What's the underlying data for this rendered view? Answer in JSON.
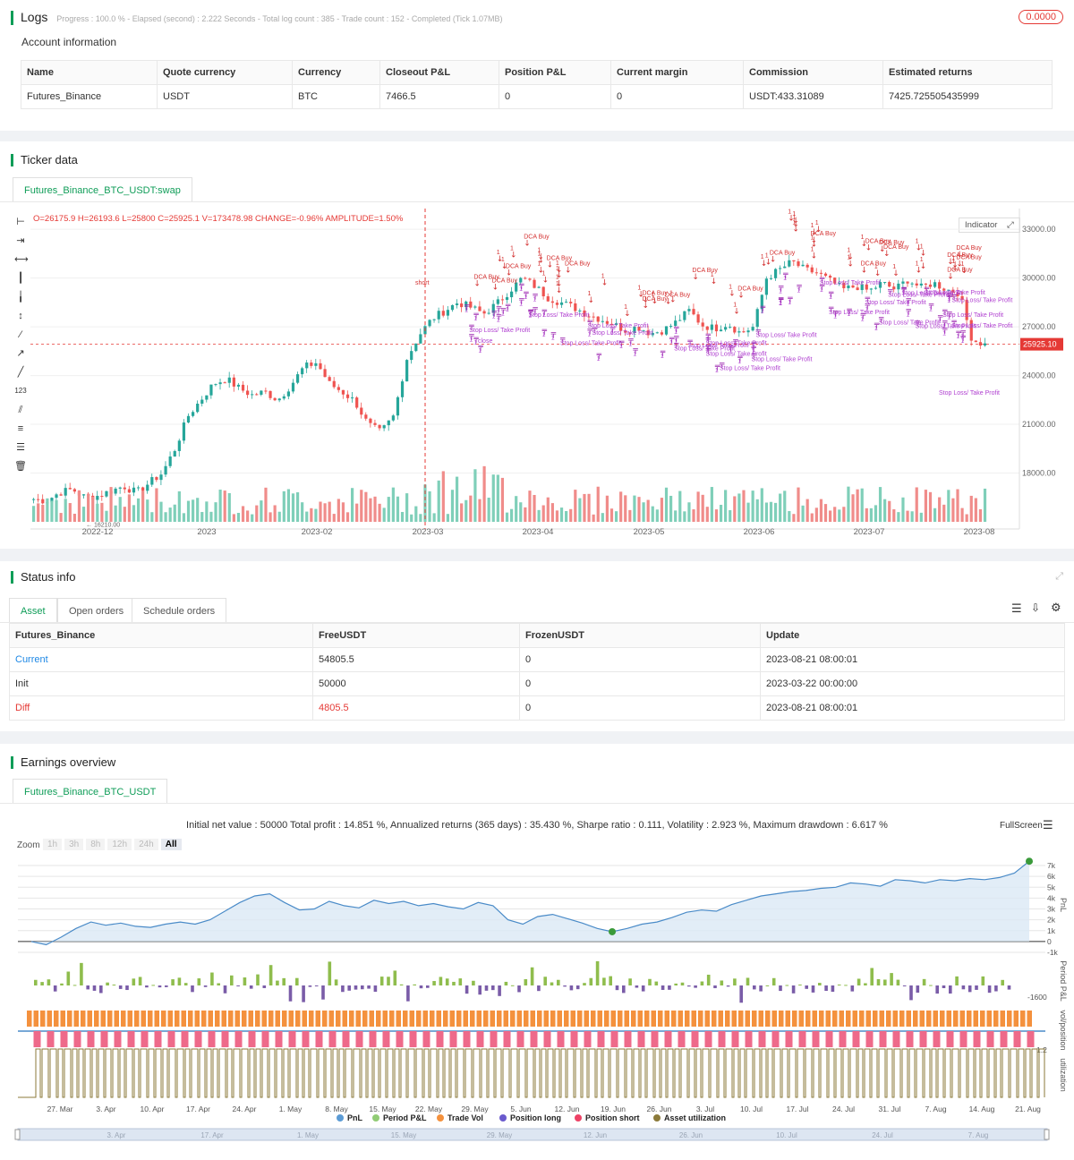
{
  "logs": {
    "title": "Logs",
    "progress": "Progress : 100.0 % - Elapsed (second) : 2.222  Seconds - Total log count : 385 - Trade count : 152 - Completed (Tick 1.07MB)",
    "badge": "0.0000"
  },
  "account": {
    "title": "Account information",
    "headers": [
      "Name",
      "Quote currency",
      "Currency",
      "Closeout P&L",
      "Position P&L",
      "Current margin",
      "Commission",
      "Estimated returns"
    ],
    "row": [
      "Futures_Binance",
      "USDT",
      "BTC",
      "7466.5",
      "0",
      "0",
      "USDT:433.31089",
      "7425.725505435999"
    ]
  },
  "ticker": {
    "title": "Ticker data",
    "tab": "Futures_Binance_BTC_USDT:swap",
    "ohlc": {
      "o": "O=26175.9",
      "h": "H=26193.6",
      "l": "L=25800",
      "c": "C=25925.1",
      "v": "V=173478.98",
      "change": "CHANGE=-0.96%",
      "amplitude": "AMPLITUDE=1.50%"
    },
    "indicator_btn": "Indicator",
    "price_tag": "25925.10",
    "low_label": "16210.00",
    "y_ticks": [
      "33000.00",
      "30000.00",
      "27000.00",
      "24000.00",
      "21000.00",
      "18000.00"
    ],
    "x_ticks": [
      "2022-12",
      "2023",
      "2023-02",
      "2023-03",
      "2023-04",
      "2023-05",
      "2023-06",
      "2023-07",
      "2023-08"
    ],
    "annotations": [
      "DCA Buy",
      "short",
      "close",
      "Stop Loss/ Take Profit",
      "1"
    ]
  },
  "status": {
    "title": "Status info",
    "tabs": [
      "Asset",
      "Open orders",
      "Schedule orders"
    ],
    "headers": [
      "Futures_Binance",
      "FreeUSDT",
      "FrozenUSDT",
      "Update"
    ],
    "rows": [
      [
        "Current",
        "54805.5",
        "0",
        "2023-08-21 08:00:01"
      ],
      [
        "Init",
        "50000",
        "0",
        "2023-03-22 00:00:00"
      ],
      [
        "Diff",
        "4805.5",
        "0",
        "2023-08-21 08:00:01"
      ]
    ]
  },
  "earnings": {
    "title": "Earnings overview",
    "tab": "Futures_Binance_BTC_USDT",
    "summary": "Initial net value : 50000  Total profit : 14.851 %, Annualized returns (365 days) : 35.430 %, Sharpe ratio : 0.111, Volatility : 2.923 %, Maximum drawdown : 6.617 %",
    "fullscreen": "FullScreen",
    "zoom_label": "Zoom",
    "zoom_options": [
      "1h",
      "3h",
      "8h",
      "12h",
      "24h",
      "All"
    ],
    "pnl_ticks": [
      "7k",
      "6k",
      "5k",
      "4k",
      "3k",
      "2k",
      "1k",
      "0",
      "-1k"
    ],
    "period_tick": "-1600",
    "vol_tick": "1.2",
    "right_labels": [
      "PnL",
      "Period P&L",
      "vol/position",
      "utilization"
    ],
    "x_ticks": [
      "27. Mar",
      "3. Apr",
      "10. Apr",
      "17. Apr",
      "24. Apr",
      "1. May",
      "8. May",
      "15. May",
      "22. May",
      "29. May",
      "5. Jun",
      "12. Jun",
      "19. Jun",
      "26. Jun",
      "3. Jul",
      "10. Jul",
      "17. Jul",
      "24. Jul",
      "31. Jul",
      "7. Aug",
      "14. Aug",
      "21. Aug"
    ],
    "nav_ticks": [
      "3. Apr",
      "17. Apr",
      "1. May",
      "15. May",
      "29. May",
      "12. Jun",
      "26. Jun",
      "10. Jul",
      "24. Jul",
      "7. Aug"
    ],
    "legend": [
      {
        "label": "PnL",
        "color": "#5b9bd5"
      },
      {
        "label": "Period P&L",
        "color": "#91cc75"
      },
      {
        "label": "Trade Vol",
        "color": "#f4913d"
      },
      {
        "label": "Position long",
        "color": "#6a5acd"
      },
      {
        "label": "Position short",
        "color": "#ee4266"
      },
      {
        "label": "Asset utilization",
        "color": "#8b7a3a"
      }
    ]
  },
  "chart_data": [
    {
      "type": "candlestick",
      "title": "",
      "x_range": [
        "2022-11",
        "2023-08"
      ],
      "ylim": [
        15000,
        34000
      ],
      "close_path": [
        16400,
        16300,
        16800,
        17000,
        16500,
        16600,
        16900,
        17200,
        16800,
        17400,
        18000,
        19500,
        21500,
        22500,
        23500,
        23800,
        23200,
        22800,
        23000,
        22500,
        23400,
        24500,
        24800,
        23500,
        23000,
        22400,
        21000,
        20500,
        21500,
        25000,
        26500,
        27500,
        28000,
        28500,
        28200,
        27800,
        28400,
        29200,
        30000,
        29500,
        28800,
        28500,
        28200,
        27800,
        27500,
        27200,
        26800,
        27000,
        26600,
        26800,
        27300,
        28000,
        27100,
        26900,
        27200,
        26600,
        27000,
        30000,
        30500,
        31000,
        30500,
        30300,
        29800,
        29300,
        29500,
        29200,
        29700,
        29300,
        29900,
        29400,
        29700,
        29300,
        29100,
        26200,
        25900
      ]
    },
    {
      "type": "line",
      "title": "",
      "ylabel": "PnL",
      "ylim": [
        -1000,
        7500
      ],
      "values": [
        0,
        -300,
        400,
        1200,
        1800,
        1500,
        1700,
        1400,
        1300,
        1600,
        1800,
        1600,
        2000,
        2800,
        3600,
        4200,
        4400,
        3600,
        2900,
        3000,
        3700,
        3300,
        3100,
        3800,
        3500,
        3700,
        3300,
        3500,
        3200,
        3000,
        3600,
        3300,
        2000,
        1600,
        2300,
        2500,
        2100,
        1700,
        1200,
        900,
        1200,
        1600,
        1800,
        2200,
        2700,
        2900,
        2800,
        3400,
        3800,
        4200,
        4400,
        4600,
        4700,
        4900,
        5000,
        5400,
        5300,
        5100,
        5700,
        5600,
        5400,
        5700,
        5600,
        5800,
        5700,
        5900,
        6300,
        7400
      ]
    }
  ]
}
